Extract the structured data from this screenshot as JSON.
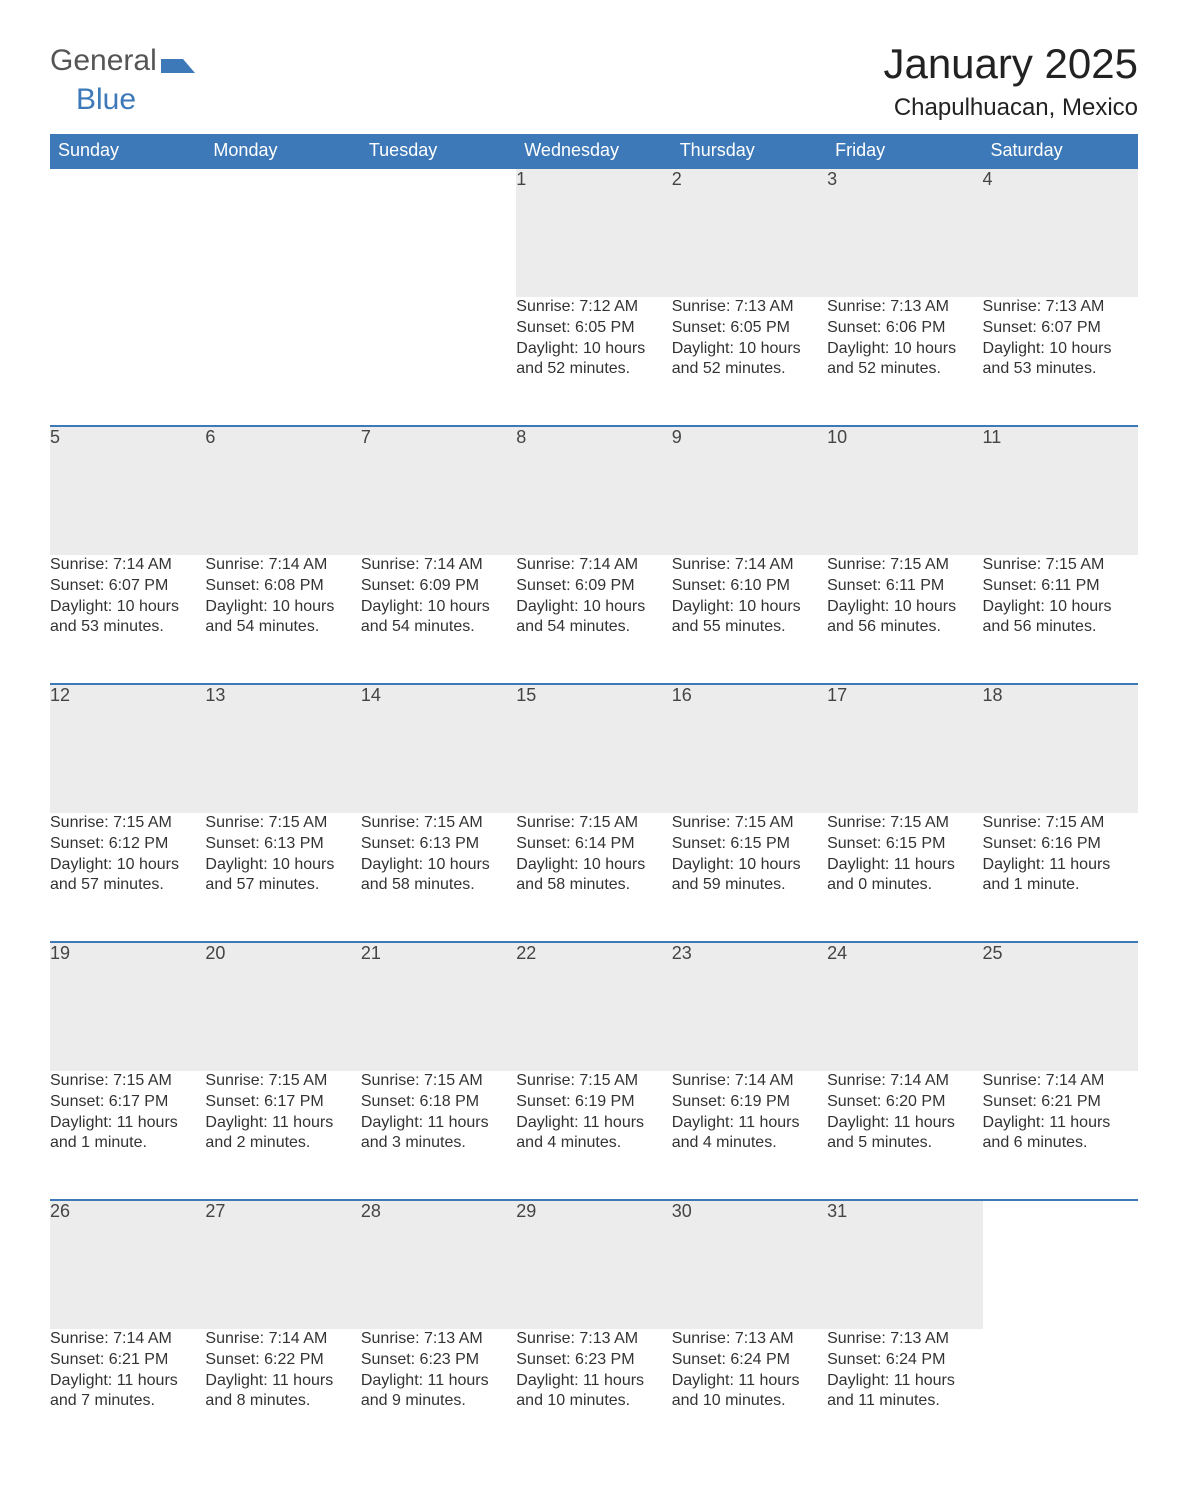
{
  "logo": {
    "text1": "General",
    "text2": "Blue"
  },
  "title": "January 2025",
  "subtitle": "Chapulhuacan, Mexico",
  "colors": {
    "header_bg": "#3d79b8",
    "header_text": "#ffffff",
    "daynum_bg": "#ececec",
    "text": "#333333",
    "border": "#3d79b8",
    "background": "#ffffff"
  },
  "font_sizes": {
    "title": 42,
    "subtitle": 24,
    "day_header": 18,
    "day_num": 18,
    "body": 16
  },
  "day_headers": [
    "Sunday",
    "Monday",
    "Tuesday",
    "Wednesday",
    "Thursday",
    "Friday",
    "Saturday"
  ],
  "weeks": [
    [
      null,
      null,
      null,
      {
        "n": "1",
        "sr": "7:12 AM",
        "ss": "6:05 PM",
        "dl": "10 hours and 52 minutes."
      },
      {
        "n": "2",
        "sr": "7:13 AM",
        "ss": "6:05 PM",
        "dl": "10 hours and 52 minutes."
      },
      {
        "n": "3",
        "sr": "7:13 AM",
        "ss": "6:06 PM",
        "dl": "10 hours and 52 minutes."
      },
      {
        "n": "4",
        "sr": "7:13 AM",
        "ss": "6:07 PM",
        "dl": "10 hours and 53 minutes."
      }
    ],
    [
      {
        "n": "5",
        "sr": "7:14 AM",
        "ss": "6:07 PM",
        "dl": "10 hours and 53 minutes."
      },
      {
        "n": "6",
        "sr": "7:14 AM",
        "ss": "6:08 PM",
        "dl": "10 hours and 54 minutes."
      },
      {
        "n": "7",
        "sr": "7:14 AM",
        "ss": "6:09 PM",
        "dl": "10 hours and 54 minutes."
      },
      {
        "n": "8",
        "sr": "7:14 AM",
        "ss": "6:09 PM",
        "dl": "10 hours and 54 minutes."
      },
      {
        "n": "9",
        "sr": "7:14 AM",
        "ss": "6:10 PM",
        "dl": "10 hours and 55 minutes."
      },
      {
        "n": "10",
        "sr": "7:15 AM",
        "ss": "6:11 PM",
        "dl": "10 hours and 56 minutes."
      },
      {
        "n": "11",
        "sr": "7:15 AM",
        "ss": "6:11 PM",
        "dl": "10 hours and 56 minutes."
      }
    ],
    [
      {
        "n": "12",
        "sr": "7:15 AM",
        "ss": "6:12 PM",
        "dl": "10 hours and 57 minutes."
      },
      {
        "n": "13",
        "sr": "7:15 AM",
        "ss": "6:13 PM",
        "dl": "10 hours and 57 minutes."
      },
      {
        "n": "14",
        "sr": "7:15 AM",
        "ss": "6:13 PM",
        "dl": "10 hours and 58 minutes."
      },
      {
        "n": "15",
        "sr": "7:15 AM",
        "ss": "6:14 PM",
        "dl": "10 hours and 58 minutes."
      },
      {
        "n": "16",
        "sr": "7:15 AM",
        "ss": "6:15 PM",
        "dl": "10 hours and 59 minutes."
      },
      {
        "n": "17",
        "sr": "7:15 AM",
        "ss": "6:15 PM",
        "dl": "11 hours and 0 minutes."
      },
      {
        "n": "18",
        "sr": "7:15 AM",
        "ss": "6:16 PM",
        "dl": "11 hours and 1 minute."
      }
    ],
    [
      {
        "n": "19",
        "sr": "7:15 AM",
        "ss": "6:17 PM",
        "dl": "11 hours and 1 minute."
      },
      {
        "n": "20",
        "sr": "7:15 AM",
        "ss": "6:17 PM",
        "dl": "11 hours and 2 minutes."
      },
      {
        "n": "21",
        "sr": "7:15 AM",
        "ss": "6:18 PM",
        "dl": "11 hours and 3 minutes."
      },
      {
        "n": "22",
        "sr": "7:15 AM",
        "ss": "6:19 PM",
        "dl": "11 hours and 4 minutes."
      },
      {
        "n": "23",
        "sr": "7:14 AM",
        "ss": "6:19 PM",
        "dl": "11 hours and 4 minutes."
      },
      {
        "n": "24",
        "sr": "7:14 AM",
        "ss": "6:20 PM",
        "dl": "11 hours and 5 minutes."
      },
      {
        "n": "25",
        "sr": "7:14 AM",
        "ss": "6:21 PM",
        "dl": "11 hours and 6 minutes."
      }
    ],
    [
      {
        "n": "26",
        "sr": "7:14 AM",
        "ss": "6:21 PM",
        "dl": "11 hours and 7 minutes."
      },
      {
        "n": "27",
        "sr": "7:14 AM",
        "ss": "6:22 PM",
        "dl": "11 hours and 8 minutes."
      },
      {
        "n": "28",
        "sr": "7:13 AM",
        "ss": "6:23 PM",
        "dl": "11 hours and 9 minutes."
      },
      {
        "n": "29",
        "sr": "7:13 AM",
        "ss": "6:23 PM",
        "dl": "11 hours and 10 minutes."
      },
      {
        "n": "30",
        "sr": "7:13 AM",
        "ss": "6:24 PM",
        "dl": "11 hours and 10 minutes."
      },
      {
        "n": "31",
        "sr": "7:13 AM",
        "ss": "6:24 PM",
        "dl": "11 hours and 11 minutes."
      },
      null
    ]
  ],
  "labels": {
    "sunrise": "Sunrise: ",
    "sunset": "Sunset: ",
    "daylight": "Daylight: "
  }
}
